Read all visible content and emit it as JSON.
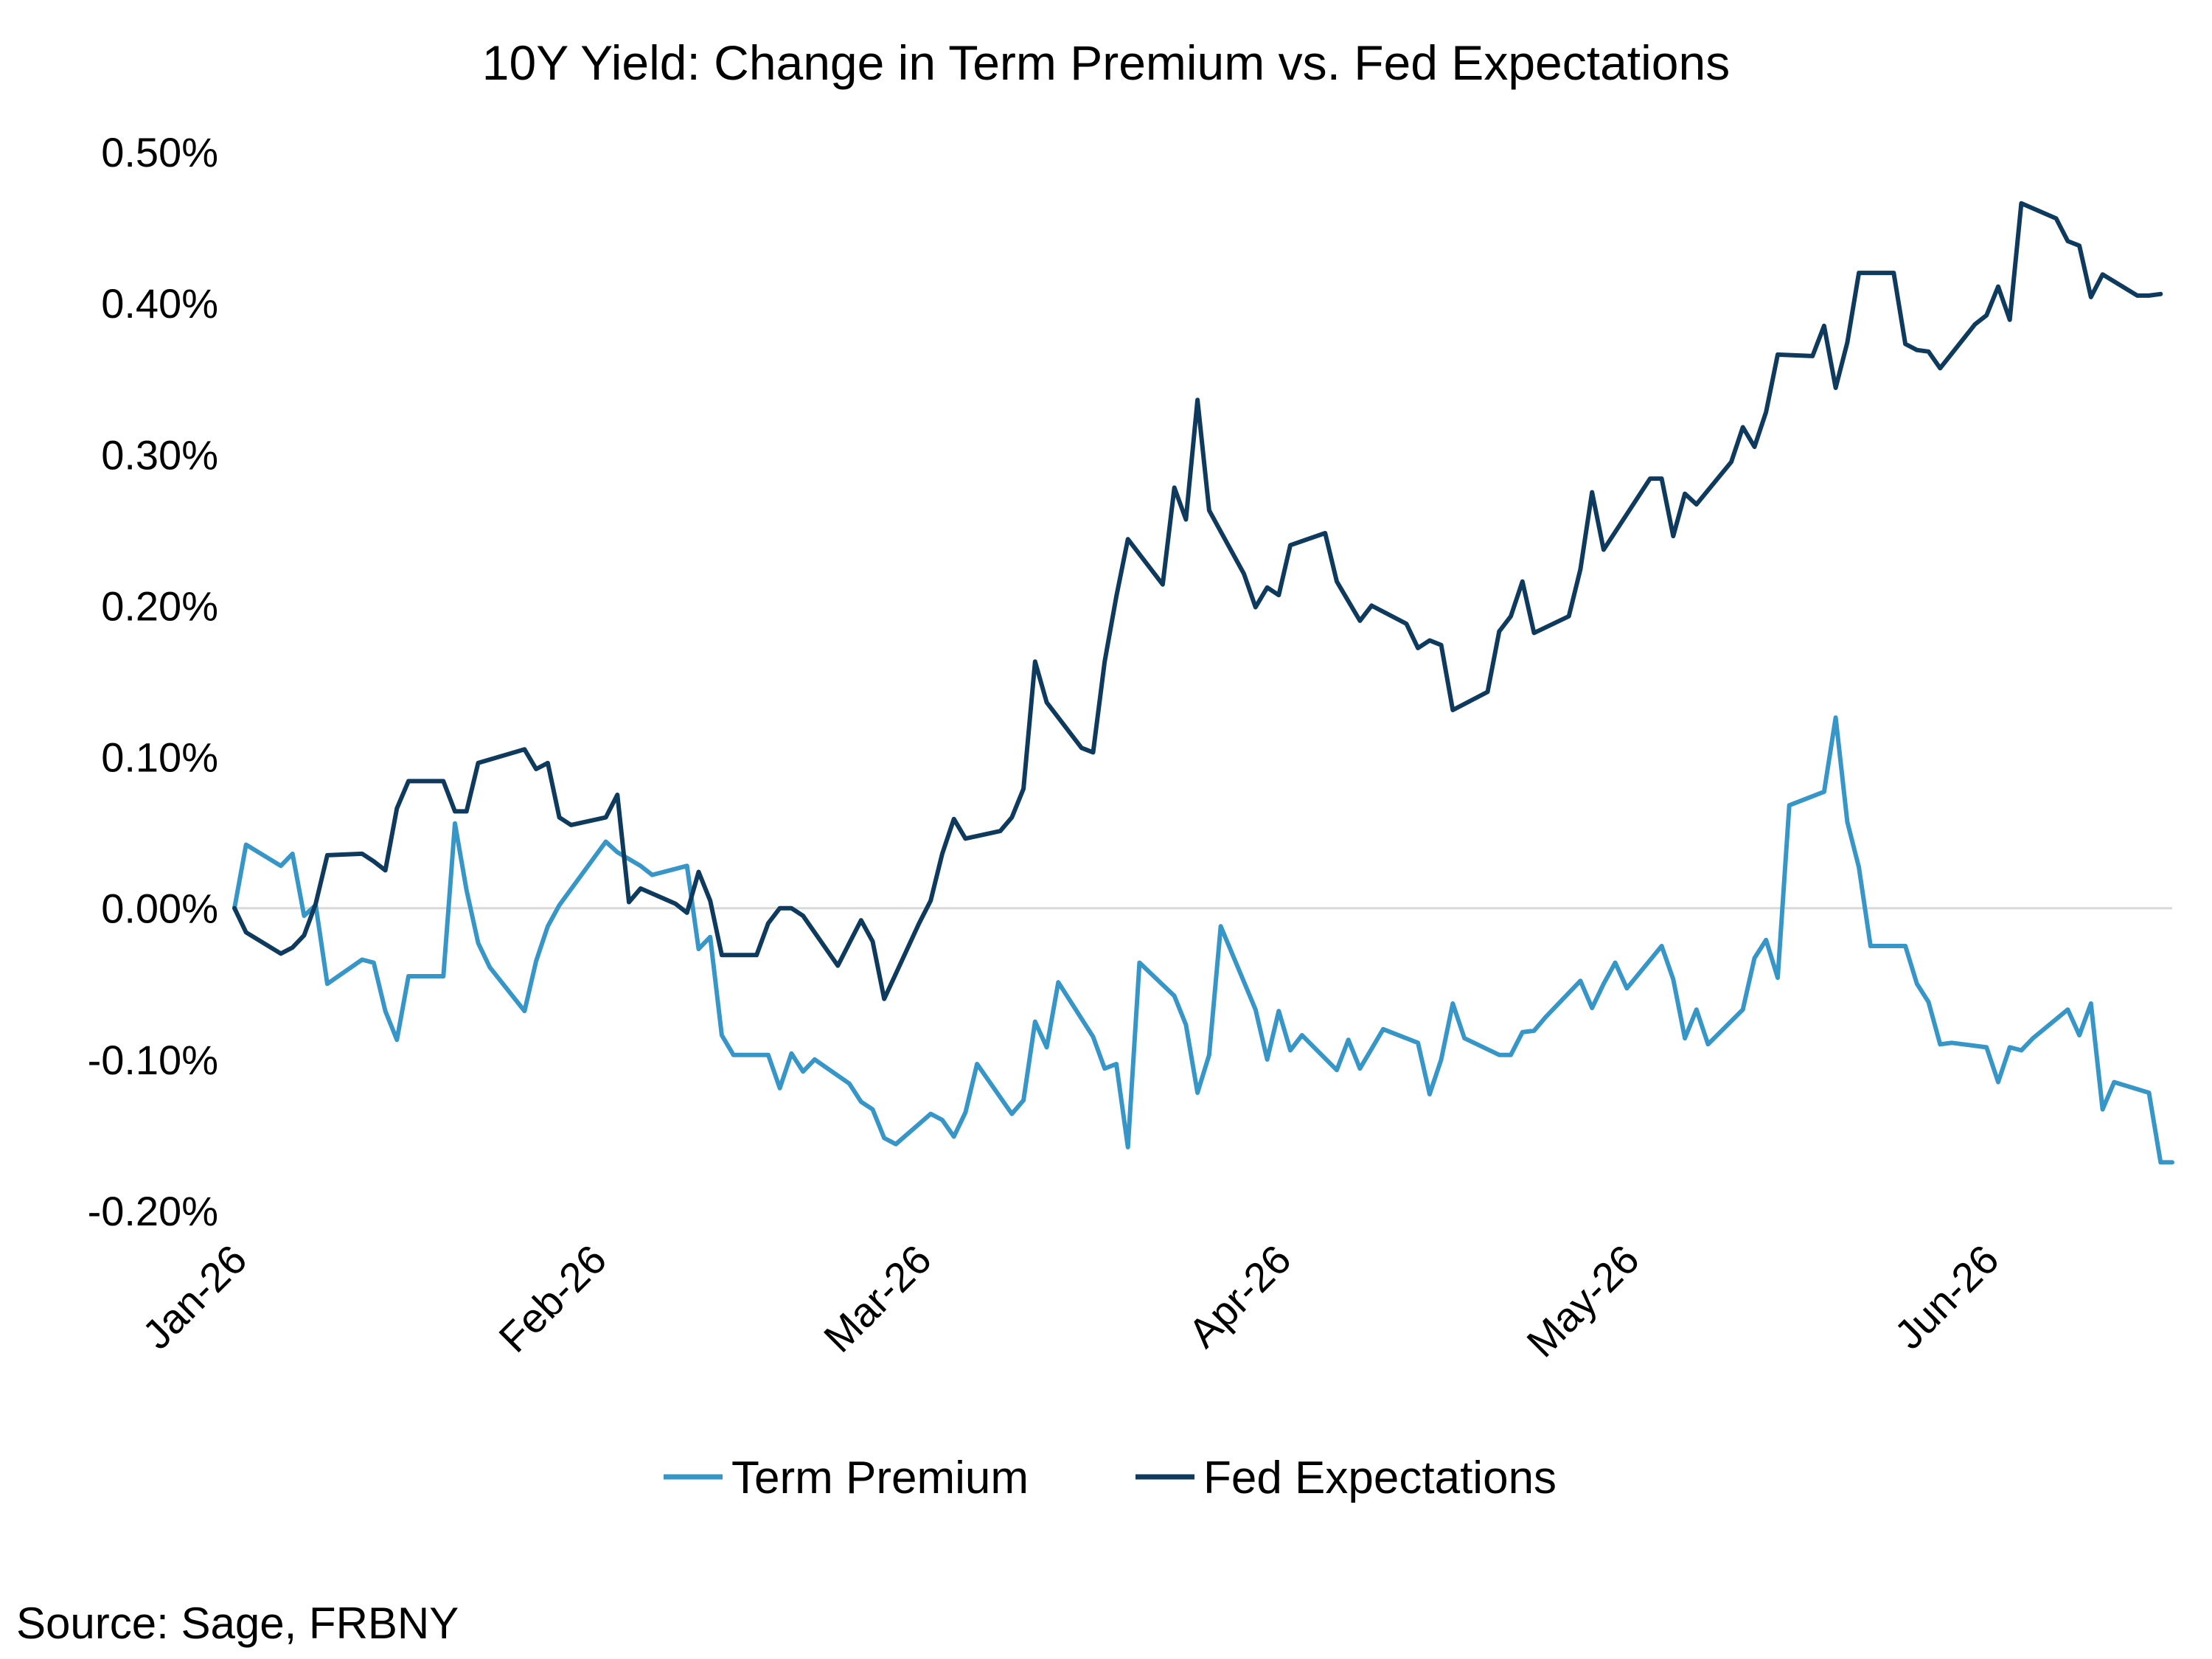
{
  "chart_data": {
    "type": "line",
    "title": "10Y Yield: Change in Term Premium vs. Fed Expectations",
    "xlabel": "",
    "ylabel": "",
    "ylim": [
      -0.2,
      0.5
    ],
    "y_ticks": [
      "0.50%",
      "0.40%",
      "0.30%",
      "0.20%",
      "0.10%",
      "0.00%",
      "-0.10%",
      "-0.20%"
    ],
    "x_ticks": [
      "Jan-26",
      "Feb-26",
      "Mar-26",
      "Apr-26",
      "May-26",
      "Jun-26"
    ],
    "x_tick_days": [
      0,
      31,
      59,
      90,
      120,
      151
    ],
    "x_range_days": [
      0,
      167
    ],
    "grid": false,
    "zero_line": true,
    "legend_position": "bottom",
    "series": [
      {
        "name": "Term Premium",
        "color": "#3596c7",
        "points": [
          [
            0,
            0.0
          ],
          [
            1,
            0.042
          ],
          [
            4,
            0.028
          ],
          [
            5,
            0.036
          ],
          [
            6,
            -0.005
          ],
          [
            7,
            0.002
          ],
          [
            8,
            -0.05
          ],
          [
            11,
            -0.034
          ],
          [
            12,
            -0.036
          ],
          [
            13,
            -0.068
          ],
          [
            14,
            -0.087
          ],
          [
            15,
            -0.045
          ],
          [
            18,
            -0.045
          ],
          [
            19,
            0.056
          ],
          [
            20,
            0.012
          ],
          [
            21,
            -0.023
          ],
          [
            22,
            -0.039
          ],
          [
            25,
            -0.068
          ],
          [
            26,
            -0.035
          ],
          [
            27,
            -0.012
          ],
          [
            28,
            0.002
          ],
          [
            32,
            0.044
          ],
          [
            33,
            0.037
          ],
          [
            35,
            0.028
          ],
          [
            36,
            0.022
          ],
          [
            39,
            0.028
          ],
          [
            40,
            -0.027
          ],
          [
            41,
            -0.019
          ],
          [
            42,
            -0.084
          ],
          [
            43,
            -0.097
          ],
          [
            46,
            -0.097
          ],
          [
            47,
            -0.119
          ],
          [
            48,
            -0.096
          ],
          [
            49,
            -0.108
          ],
          [
            50,
            -0.1
          ],
          [
            53,
            -0.116
          ],
          [
            54,
            -0.128
          ],
          [
            55,
            -0.133
          ],
          [
            56,
            -0.152
          ],
          [
            57,
            -0.156
          ],
          [
            60,
            -0.136
          ],
          [
            61,
            -0.14
          ],
          [
            62,
            -0.151
          ],
          [
            63,
            -0.135
          ],
          [
            64,
            -0.103
          ],
          [
            67,
            -0.136
          ],
          [
            68,
            -0.127
          ],
          [
            69,
            -0.075
          ],
          [
            70,
            -0.092
          ],
          [
            71,
            -0.049
          ],
          [
            74,
            -0.085
          ],
          [
            75,
            -0.106
          ],
          [
            76,
            -0.103
          ],
          [
            77,
            -0.158
          ],
          [
            78,
            -0.036
          ],
          [
            81,
            -0.058
          ],
          [
            82,
            -0.077
          ],
          [
            83,
            -0.122
          ],
          [
            84,
            -0.097
          ],
          [
            85,
            -0.012
          ],
          [
            88,
            -0.067
          ],
          [
            89,
            -0.1
          ],
          [
            90,
            -0.068
          ],
          [
            91,
            -0.094
          ],
          [
            92,
            -0.084
          ],
          [
            95,
            -0.107
          ],
          [
            96,
            -0.087
          ],
          [
            97,
            -0.106
          ],
          [
            98,
            -0.093
          ],
          [
            99,
            -0.08
          ],
          [
            102,
            -0.089
          ],
          [
            103,
            -0.123
          ],
          [
            104,
            -0.1
          ],
          [
            105,
            -0.063
          ],
          [
            106,
            -0.086
          ],
          [
            109,
            -0.097
          ],
          [
            110,
            -0.097
          ],
          [
            111,
            -0.082
          ],
          [
            112,
            -0.081
          ],
          [
            113,
            -0.072
          ],
          [
            116,
            -0.048
          ],
          [
            117,
            -0.066
          ],
          [
            118,
            -0.05
          ],
          [
            119,
            -0.036
          ],
          [
            120,
            -0.053
          ],
          [
            123,
            -0.025
          ],
          [
            124,
            -0.047
          ],
          [
            125,
            -0.086
          ],
          [
            126,
            -0.067
          ],
          [
            127,
            -0.09
          ],
          [
            130,
            -0.067
          ],
          [
            131,
            -0.033
          ],
          [
            132,
            -0.021
          ],
          [
            133,
            -0.046
          ],
          [
            134,
            0.068
          ],
          [
            137,
            0.077
          ],
          [
            138,
            0.126
          ],
          [
            139,
            0.057
          ],
          [
            140,
            0.027
          ],
          [
            141,
            -0.025
          ],
          [
            144,
            -0.025
          ],
          [
            145,
            -0.05
          ],
          [
            146,
            -0.062
          ],
          [
            147,
            -0.09
          ],
          [
            148,
            -0.089
          ],
          [
            151,
            -0.092
          ],
          [
            152,
            -0.115
          ],
          [
            153,
            -0.092
          ],
          [
            154,
            -0.094
          ],
          [
            155,
            -0.086
          ],
          [
            158,
            -0.067
          ],
          [
            159,
            -0.084
          ],
          [
            160,
            -0.063
          ],
          [
            161,
            -0.133
          ],
          [
            162,
            -0.115
          ],
          [
            165,
            -0.122
          ],
          [
            166,
            -0.168
          ],
          [
            167,
            -0.168
          ]
        ]
      },
      {
        "name": "Fed Expectations",
        "color": "#0e3a5e",
        "points": [
          [
            0,
            0.0
          ],
          [
            1,
            -0.016
          ],
          [
            4,
            -0.03
          ],
          [
            5,
            -0.026
          ],
          [
            6,
            -0.018
          ],
          [
            7,
            0.003
          ],
          [
            8,
            0.035
          ],
          [
            11,
            0.036
          ],
          [
            12,
            0.031
          ],
          [
            13,
            0.025
          ],
          [
            14,
            0.066
          ],
          [
            15,
            0.084
          ],
          [
            18,
            0.084
          ],
          [
            19,
            0.064
          ],
          [
            20,
            0.064
          ],
          [
            21,
            0.096
          ],
          [
            25,
            0.105
          ],
          [
            26,
            0.092
          ],
          [
            27,
            0.096
          ],
          [
            28,
            0.06
          ],
          [
            29,
            0.055
          ],
          [
            32,
            0.06
          ],
          [
            33,
            0.075
          ],
          [
            34,
            0.004
          ],
          [
            35,
            0.013
          ],
          [
            38,
            0.003
          ],
          [
            39,
            -0.003
          ],
          [
            40,
            0.024
          ],
          [
            41,
            0.005
          ],
          [
            42,
            -0.031
          ],
          [
            45,
            -0.031
          ],
          [
            46,
            -0.01
          ],
          [
            47,
            0.0
          ],
          [
            48,
            0.0
          ],
          [
            49,
            -0.005
          ],
          [
            52,
            -0.038
          ],
          [
            53,
            -0.023
          ],
          [
            54,
            -0.008
          ],
          [
            55,
            -0.022
          ],
          [
            56,
            -0.06
          ],
          [
            59,
            -0.01
          ],
          [
            60,
            0.005
          ],
          [
            61,
            0.036
          ],
          [
            62,
            0.059
          ],
          [
            63,
            0.046
          ],
          [
            66,
            0.051
          ],
          [
            67,
            0.06
          ],
          [
            68,
            0.079
          ],
          [
            69,
            0.163
          ],
          [
            70,
            0.136
          ],
          [
            73,
            0.106
          ],
          [
            74,
            0.103
          ],
          [
            75,
            0.163
          ],
          [
            76,
            0.206
          ],
          [
            77,
            0.244
          ],
          [
            80,
            0.214
          ],
          [
            81,
            0.278
          ],
          [
            82,
            0.257
          ],
          [
            83,
            0.336
          ],
          [
            84,
            0.263
          ],
          [
            87,
            0.221
          ],
          [
            88,
            0.199
          ],
          [
            89,
            0.212
          ],
          [
            90,
            0.207
          ],
          [
            91,
            0.24
          ],
          [
            94,
            0.248
          ],
          [
            95,
            0.216
          ],
          [
            96,
            0.203
          ],
          [
            97,
            0.19
          ],
          [
            98,
            0.2
          ],
          [
            101,
            0.188
          ],
          [
            102,
            0.172
          ],
          [
            103,
            0.177
          ],
          [
            104,
            0.174
          ],
          [
            105,
            0.131
          ],
          [
            108,
            0.143
          ],
          [
            109,
            0.183
          ],
          [
            110,
            0.193
          ],
          [
            111,
            0.216
          ],
          [
            112,
            0.182
          ],
          [
            115,
            0.193
          ],
          [
            116,
            0.224
          ],
          [
            117,
            0.275
          ],
          [
            118,
            0.237
          ],
          [
            122,
            0.284
          ],
          [
            123,
            0.284
          ],
          [
            124,
            0.246
          ],
          [
            125,
            0.274
          ],
          [
            126,
            0.267
          ],
          [
            129,
            0.295
          ],
          [
            130,
            0.318
          ],
          [
            131,
            0.305
          ],
          [
            132,
            0.328
          ],
          [
            133,
            0.366
          ],
          [
            136,
            0.365
          ],
          [
            137,
            0.385
          ],
          [
            138,
            0.344
          ],
          [
            139,
            0.374
          ],
          [
            140,
            0.42
          ],
          [
            143,
            0.42
          ],
          [
            144,
            0.373
          ],
          [
            145,
            0.369
          ],
          [
            146,
            0.368
          ],
          [
            147,
            0.357
          ],
          [
            150,
            0.386
          ],
          [
            151,
            0.392
          ],
          [
            152,
            0.411
          ],
          [
            153,
            0.389
          ],
          [
            154,
            0.466
          ],
          [
            157,
            0.456
          ],
          [
            158,
            0.441
          ],
          [
            159,
            0.438
          ],
          [
            160,
            0.404
          ],
          [
            161,
            0.419
          ],
          [
            164,
            0.405
          ],
          [
            165,
            0.405
          ],
          [
            166,
            0.406
          ]
        ]
      }
    ]
  },
  "source": "Source: Sage, FRBNY"
}
